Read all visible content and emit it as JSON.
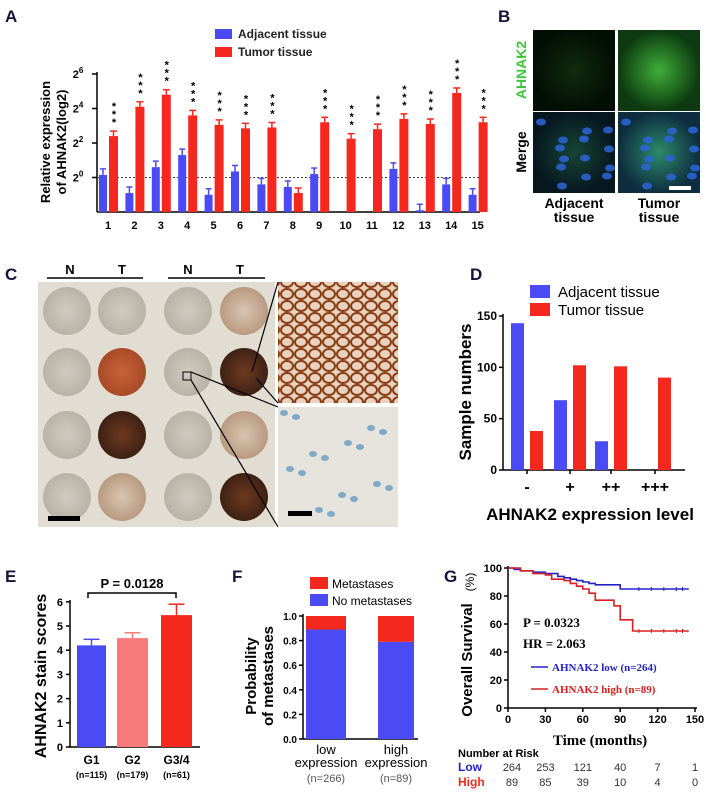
{
  "colors": {
    "blue": "#4b4bf5",
    "red": "#f5281e",
    "pink": "#f77b7b",
    "dark_red": "#d72020",
    "dark_blue": "#2323c8"
  },
  "panels": {
    "A": "A",
    "B": "B",
    "C": "C",
    "D": "D",
    "E": "E",
    "F": "F",
    "G": "G"
  },
  "chart_data": [
    {
      "panel": "A",
      "type": "bar",
      "ylabel": "Relative expression of AHNAK2(log2)",
      "ylabel_lines": [
        "Relative expression",
        "of AHNAK2(log2)"
      ],
      "yscale": "log2",
      "ylim_log2": [
        -2,
        6
      ],
      "yticks": [
        {
          "base": "2",
          "exp": "0",
          "v": 0
        },
        {
          "base": "2",
          "exp": "2",
          "v": 2
        },
        {
          "base": "2",
          "exp": "4",
          "v": 4
        },
        {
          "base": "2",
          "exp": "6",
          "v": 6
        }
      ],
      "reference_line_log2": 0,
      "categories": [
        "1",
        "2",
        "3",
        "4",
        "5",
        "6",
        "7",
        "8",
        "9",
        "10",
        "11",
        "12",
        "13",
        "14",
        "15"
      ],
      "series": [
        {
          "name": "Adjacent tissue",
          "color": "#4b4bf5",
          "values_log2": [
            0.15,
            -0.9,
            0.6,
            1.3,
            -1.0,
            0.35,
            -0.4,
            -0.55,
            0.2,
            null,
            null,
            0.5,
            -1.9,
            -0.4,
            -1.0
          ]
        },
        {
          "name": "Tumor tissue",
          "color": "#f5281e",
          "values_log2": [
            2.4,
            4.1,
            4.8,
            3.6,
            3.05,
            2.85,
            2.9,
            -0.9,
            3.2,
            2.25,
            2.8,
            3.4,
            3.1,
            4.9,
            3.2
          ]
        }
      ],
      "significance": [
        "***",
        "***",
        "***",
        "***",
        "***",
        "***",
        "***",
        "",
        "***",
        "***",
        "***",
        "***",
        "***",
        "***",
        "***"
      ]
    },
    {
      "panel": "D",
      "type": "bar",
      "xlabel": "AHNAK2 expression level",
      "ylabel": "Sample numbers",
      "ylim": [
        0,
        150
      ],
      "yticks": [
        "0",
        "50",
        "100",
        "150"
      ],
      "categories": [
        "-",
        "+",
        "++",
        "+++"
      ],
      "series": [
        {
          "name": "Adjacent tissue",
          "color": "#4b4bf5",
          "values": [
            143,
            68,
            28,
            0
          ]
        },
        {
          "name": "Tumor tissue",
          "color": "#f5281e",
          "values": [
            38,
            102,
            101,
            90
          ]
        }
      ]
    },
    {
      "panel": "E",
      "type": "bar",
      "ylabel": "AHNAK2 stain scores",
      "ylim": [
        0,
        6
      ],
      "yticks": [
        "0",
        "1",
        "2",
        "3",
        "4",
        "5",
        "6"
      ],
      "categories": [
        "G1",
        "G2",
        "G3/4"
      ],
      "n_labels": [
        "(n=115)",
        "(n=179)",
        "(n=61)"
      ],
      "values": [
        4.2,
        4.5,
        5.45
      ],
      "errors": [
        0.25,
        0.22,
        0.45
      ],
      "bar_colors": [
        "#4b4bf5",
        "#f77b7b",
        "#f5281e"
      ],
      "annotation": "P = 0.0128"
    },
    {
      "panel": "F",
      "type": "bar",
      "stacked": true,
      "ylabel_lines": [
        "Probability",
        "of metastases"
      ],
      "ylim": [
        0,
        1
      ],
      "yticks": [
        "0.0",
        "0.2",
        "0.4",
        "0.6",
        "0.8",
        "1.0"
      ],
      "categories": [
        [
          "low",
          "expression"
        ],
        [
          "high",
          "expression"
        ]
      ],
      "n_labels": [
        "(n=266)",
        "(n=89)"
      ],
      "series": [
        {
          "name": "No metastases",
          "color": "#4b4bf5",
          "values": [
            0.89,
            0.79
          ]
        },
        {
          "name": "Metastases",
          "color": "#f5281e",
          "values": [
            0.11,
            0.21
          ]
        }
      ]
    },
    {
      "panel": "G",
      "type": "line",
      "xlabel": "Time (months)",
      "ylabel": "Overall Survival",
      "ylabel_unit": "(%)",
      "xlim": [
        0,
        150
      ],
      "ylim": [
        0,
        100
      ],
      "xticks": [
        "0",
        "30",
        "60",
        "90",
        "120",
        "150"
      ],
      "yticks": [
        "0",
        "20",
        "40",
        "60",
        "80",
        "100"
      ],
      "annotations": [
        "P = 0.0323",
        "HR = 2.063"
      ],
      "series": [
        {
          "name": "AHNAK2 low (n=264)",
          "color": "#2323c8",
          "x": [
            0,
            5,
            10,
            20,
            30,
            40,
            45,
            50,
            55,
            60,
            65,
            70,
            75,
            90,
            145
          ],
          "y": [
            100,
            99,
            98,
            97,
            96,
            94,
            93,
            92,
            91,
            90,
            89,
            88,
            88,
            85,
            85
          ]
        },
        {
          "name": "AHNAK2 high (n=89)",
          "color": "#d72020",
          "x": [
            0,
            10,
            20,
            30,
            35,
            45,
            50,
            55,
            60,
            65,
            70,
            85,
            88,
            90,
            100,
            145
          ],
          "y": [
            100,
            98,
            96,
            95,
            92,
            91,
            89,
            87,
            85,
            82,
            77,
            73,
            73,
            63,
            55,
            55
          ]
        }
      ],
      "risk_table": {
        "title": "Number at Risk",
        "rows": [
          {
            "label": "Low",
            "values": [
              "264",
              "253",
              "121",
              "40",
              "7",
              "1"
            ]
          },
          {
            "label": "High",
            "values": [
              "89",
              "85",
              "39",
              "10",
              "4",
              "0"
            ]
          }
        ]
      }
    }
  ],
  "panel_B": {
    "row_labels": [
      "AHNAK2",
      "Merge"
    ],
    "col_labels": [
      [
        "Adjacent",
        "tissue"
      ],
      [
        "Tumor",
        "tissue"
      ]
    ]
  },
  "panel_C": {
    "headers": [
      "N",
      "T",
      "N",
      "T"
    ]
  }
}
